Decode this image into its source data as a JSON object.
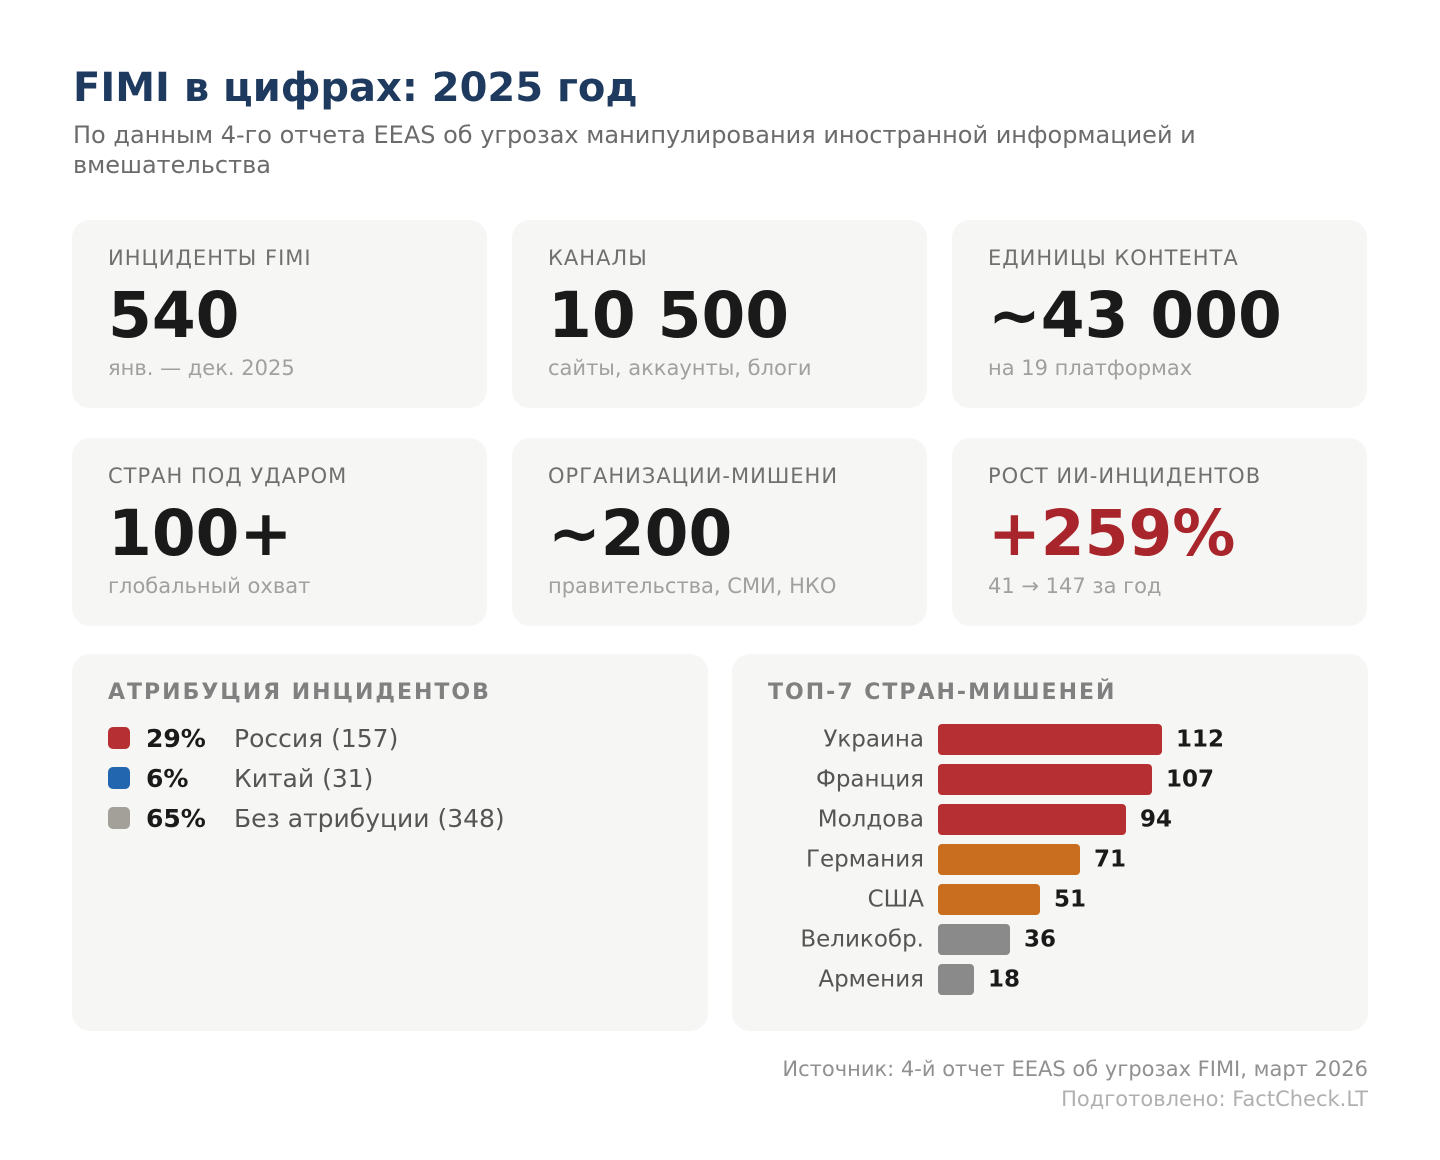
{
  "header": {
    "title": "FIMI в цифрах: 2025 год",
    "subtitle": "По данным 4-го отчета EEAS об угрозах манипулирования иностранной информацией и вмешательства"
  },
  "stats": [
    {
      "label": "ИНЦИДЕНТЫ FIMI",
      "value": "540",
      "note": "янв. — дек. 2025"
    },
    {
      "label": "КАНАЛЫ",
      "value": "10 500",
      "note": "сайты, аккаунты, блоги"
    },
    {
      "label": "ЕДИНИЦЫ КОНТЕНТА",
      "value": "~43 000",
      "note": "на 19 платформах"
    },
    {
      "label": "СТРАН ПОД УДАРОМ",
      "value": "100+",
      "note": "глобальный охват"
    },
    {
      "label": "ОРГАНИЗАЦИИ-МИШЕНИ",
      "value": "~200",
      "note": "правительства, СМИ, НКО"
    },
    {
      "label": "РОСТ ИИ-ИНЦИДЕНТОВ",
      "value": "+259%",
      "note": "41 → 147 за год"
    }
  ],
  "colors": {
    "title": "#1e3a5f",
    "accent": "#a8262b",
    "russia": "#b52f33",
    "china": "#2266b0",
    "unattributed": "#a39f99",
    "bar_red": "#b52f33",
    "bar_orange": "#c86e1e",
    "bar_gray": "#8a8a8a"
  },
  "attribution": {
    "title": "АТРИБУЦИЯ ИНЦИДЕНТОВ",
    "items": [
      {
        "pct": "29%",
        "label": "Россия (157)",
        "color": "#b52f33"
      },
      {
        "pct": "6%",
        "label": "Китай (31)",
        "color": "#2266b0"
      },
      {
        "pct": "65%",
        "label": "Без атрибуции (348)",
        "color": "#a39f99"
      }
    ]
  },
  "chart_data": {
    "type": "bar",
    "orientation": "horizontal",
    "title": "ТОП-7 СТРАН-МИШЕНЕЙ",
    "categories": [
      "Украина",
      "Франция",
      "Молдова",
      "Германия",
      "США",
      "Великобр.",
      "Армения"
    ],
    "values": [
      112,
      107,
      94,
      71,
      51,
      36,
      18
    ],
    "bar_colors": [
      "#b52f33",
      "#b52f33",
      "#b52f33",
      "#c86e1e",
      "#c86e1e",
      "#8a8a8a",
      "#8a8a8a"
    ],
    "xlim": [
      0,
      112
    ],
    "grid": false,
    "legend": "none"
  },
  "footer": {
    "source": "Источник: 4-й отчет EEAS об угрозах FIMI, март 2026",
    "credit": "Подготовлено: FactCheck.LT"
  }
}
